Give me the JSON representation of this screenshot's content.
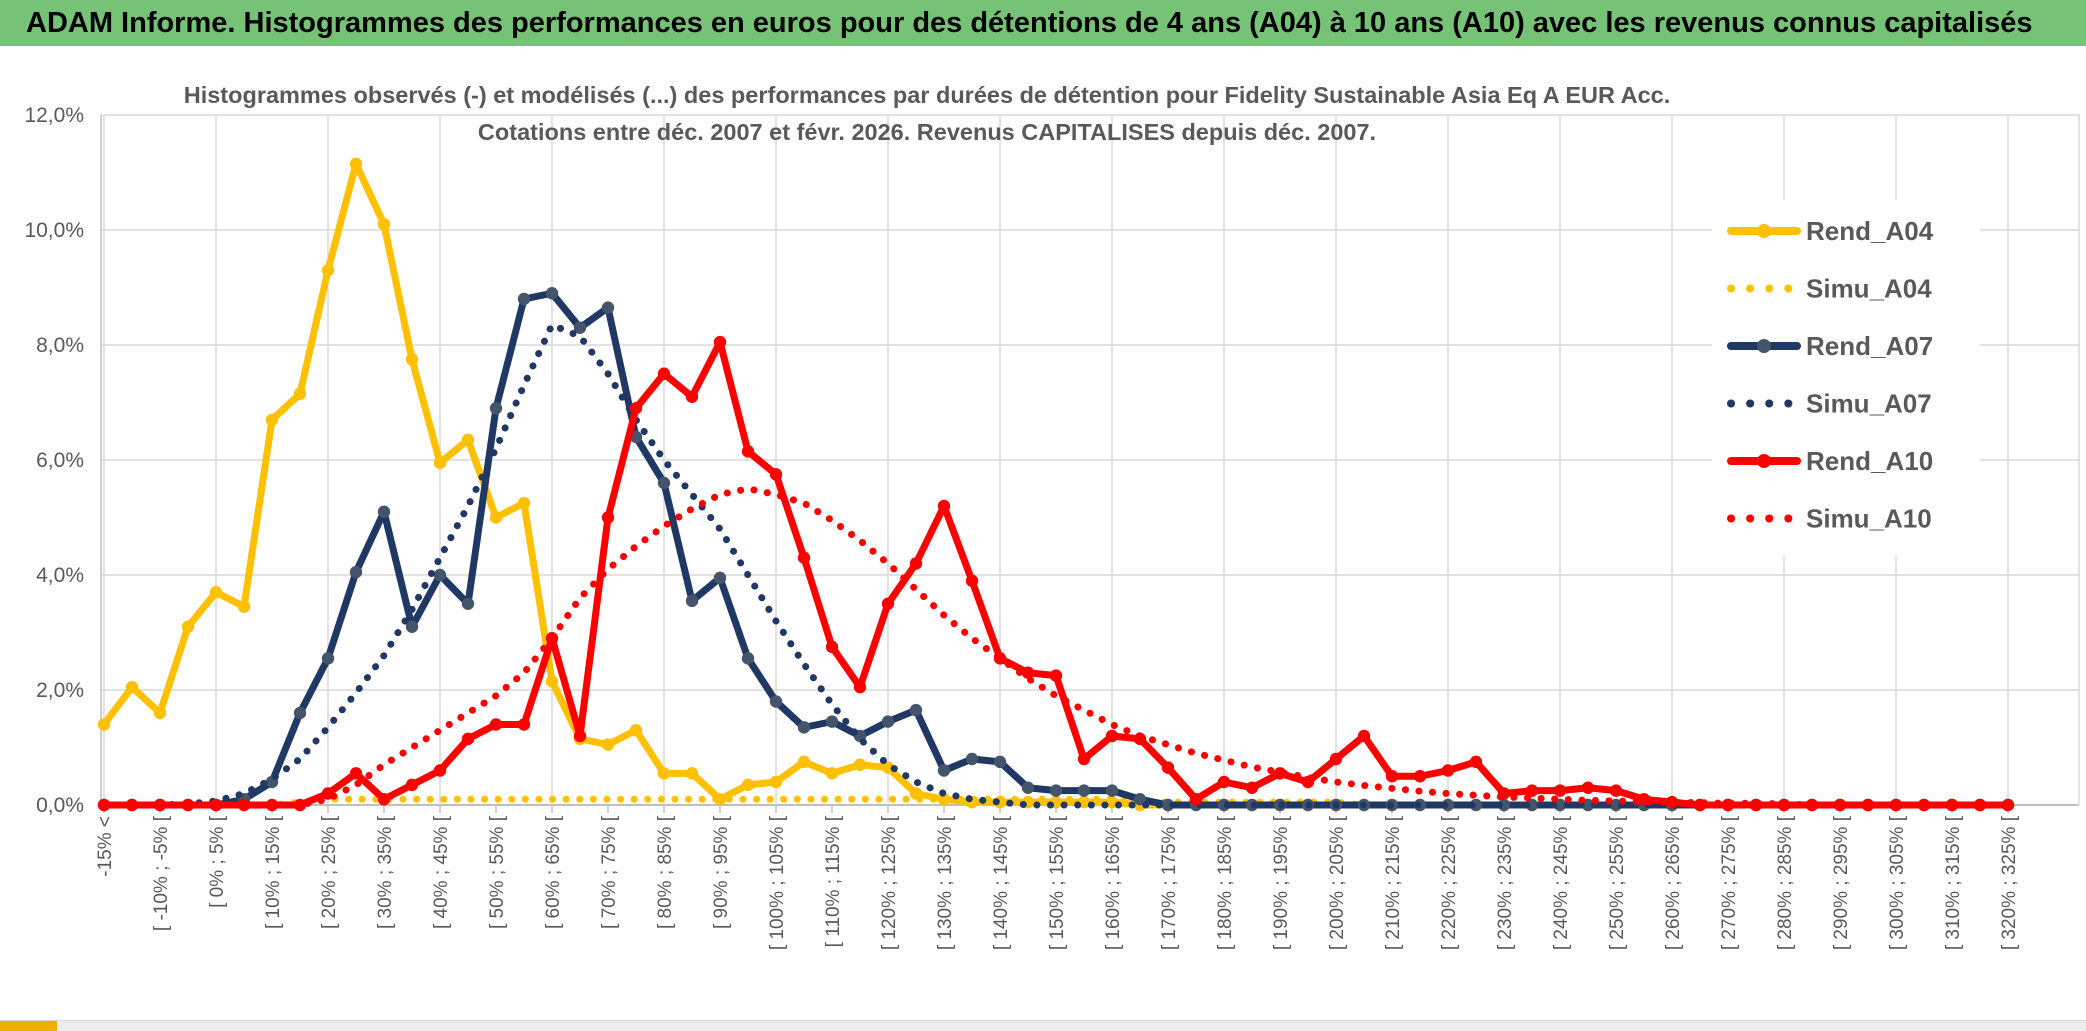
{
  "header": {
    "title": "ADAM Informe. Histogrammes des performances en euros pour des détentions de 4 ans (A04) à 10 ans (A10) avec les revenus connus capitalisés",
    "bg_color": "#76C276",
    "accent_color": "#EFAF00"
  },
  "chart_data": {
    "type": "line",
    "title_line1": "Histogrammes observés (-) et modélisés (...) des performances par durées de détention pour Fidelity Sustainable Asia Eq A EUR Acc.",
    "title_line2": "Cotations entre déc. 2007 et févr. 2026. Revenus CAPITALISES depuis déc. 2007.",
    "ylabel": "",
    "xlabel": "",
    "ylim_percent": [
      0,
      12
    ],
    "y_tick_labels": [
      "0,0%",
      "2,0%",
      "4,0%",
      "6,0%",
      "8,0%",
      "10,0%",
      "12,0%"
    ],
    "grid": "on",
    "legend_position": "right",
    "bin_count": 69,
    "x_tick_every_n_bins": 2,
    "x_tick_labels": [
      "-15% <",
      "[ -10% ; -5% [",
      "[ 0% ; 5% [",
      "[ 10% ; 15% [",
      "[ 20% ; 25% [",
      "[ 30% ; 35% [",
      "[ 40% ; 45% [",
      "[ 50% ; 55% [",
      "[ 60% ; 65% [",
      "[ 70% ; 75% [",
      "[ 80% ; 85% [",
      "[ 90% ; 95% [",
      "[ 100% ; 105% [",
      "[ 110% ; 115% [",
      "[ 120% ; 125% [",
      "[ 130% ; 135% [",
      "[ 140% ; 145% [",
      "[ 150% ; 155% [",
      "[ 160% ; 165% [",
      "[ 170% ; 175% [",
      "[ 180% ; 185% [",
      "[ 190% ; 195% [",
      "[ 200% ; 205% [",
      "[ 210% ; 215% [",
      "[ 220% ; 225% [",
      "[ 230% ; 235% [",
      "[ 240% ; 245% [",
      "[ 250% ; 255% [",
      "[ 260% ; 265% [",
      "[ 270% ; 275% [",
      "[ 280% ; 285% [",
      "[ 290% ; 295% [",
      "[ 300% ; 305% [",
      "[ 310% ; 315% [",
      "[ 320% ; 325% ["
    ],
    "series": [
      {
        "name": "Rend_A04",
        "style": "solid",
        "color": "#FFC000",
        "marker_color": "#FFC000",
        "values": [
          1.4,
          2.05,
          1.6,
          3.1,
          3.7,
          3.45,
          6.7,
          7.15,
          9.3,
          11.15,
          10.1,
          7.75,
          5.95,
          6.35,
          5.0,
          5.25,
          2.15,
          1.15,
          1.05,
          1.3,
          0.55,
          0.55,
          0.1,
          0.35,
          0.4,
          0.75,
          0.55,
          0.7,
          0.65,
          0.2,
          0.1,
          0.05,
          0.05,
          0.05,
          0.05,
          0.05,
          0.05,
          0,
          0,
          0,
          0,
          0,
          0,
          0,
          0,
          0,
          0,
          0,
          0,
          0,
          0,
          0,
          0,
          0,
          0,
          0,
          0,
          0,
          0,
          0,
          0,
          0,
          0,
          0,
          0,
          0,
          0,
          0,
          0
        ]
      },
      {
        "name": "Simu_A04",
        "style": "dotted",
        "color": "#FFC000",
        "values": [
          0,
          0,
          0,
          0,
          0,
          0,
          0,
          0.05,
          0.1,
          0.1,
          0.1,
          0.1,
          0.1,
          0.1,
          0.1,
          0.1,
          0.1,
          0.1,
          0.1,
          0.1,
          0.1,
          0.1,
          0.1,
          0.1,
          0.1,
          0.1,
          0.1,
          0.1,
          0.1,
          0.1,
          0.1,
          0.1,
          0.1,
          0.1,
          0.1,
          0.1,
          0.1,
          0.05,
          0.05,
          0.05,
          0.05,
          0.05,
          0.05,
          0.05,
          0.05,
          0,
          0,
          0,
          0,
          0,
          0,
          0,
          0,
          0,
          0,
          0,
          0,
          0,
          0,
          0,
          0,
          0,
          0,
          0,
          0,
          0,
          0,
          0,
          0
        ]
      },
      {
        "name": "Rend_A07",
        "style": "solid",
        "color": "#1F3864",
        "marker_color": "#44546A",
        "values": [
          0,
          0,
          0,
          0,
          0,
          0.1,
          0.4,
          1.6,
          2.55,
          4.05,
          5.1,
          3.1,
          4.0,
          3.5,
          6.9,
          8.8,
          8.9,
          8.3,
          8.65,
          6.4,
          5.6,
          3.55,
          3.95,
          2.55,
          1.8,
          1.35,
          1.45,
          1.2,
          1.45,
          1.65,
          0.6,
          0.8,
          0.75,
          0.3,
          0.25,
          0.25,
          0.25,
          0.1,
          0,
          0,
          0,
          0,
          0,
          0,
          0,
          0,
          0,
          0,
          0,
          0,
          0,
          0,
          0,
          0,
          0,
          0,
          0,
          0,
          0,
          0,
          0,
          0,
          0,
          0,
          0,
          0,
          0,
          0,
          0
        ]
      },
      {
        "name": "Simu_A07",
        "style": "dotted",
        "color": "#1F3864",
        "values": [
          0,
          0,
          0,
          0.02,
          0.07,
          0.2,
          0.45,
          0.8,
          1.35,
          1.95,
          2.6,
          3.4,
          4.3,
          5.2,
          6.2,
          7.3,
          8.35,
          8.15,
          7.5,
          6.7,
          6.0,
          5.4,
          4.8,
          4.0,
          3.2,
          2.45,
          1.75,
          1.15,
          0.7,
          0.4,
          0.2,
          0.1,
          0.05,
          0,
          0,
          0,
          0,
          0,
          0,
          0,
          0,
          0,
          0,
          0,
          0,
          0,
          0,
          0,
          0,
          0,
          0,
          0,
          0,
          0,
          0,
          0,
          0,
          0,
          0,
          0,
          0,
          0,
          0,
          0,
          0,
          0,
          0,
          0,
          0
        ]
      },
      {
        "name": "Rend_A10",
        "style": "solid",
        "color": "#FF0000",
        "marker_color": "#FF0000",
        "values": [
          0,
          0,
          0,
          0,
          0,
          0,
          0,
          0,
          0.2,
          0.55,
          0.1,
          0.35,
          0.6,
          1.15,
          1.4,
          1.4,
          2.9,
          1.2,
          5.0,
          6.9,
          7.5,
          7.1,
          8.05,
          6.15,
          5.75,
          4.3,
          2.75,
          2.05,
          3.5,
          4.2,
          5.2,
          3.9,
          2.55,
          2.3,
          2.25,
          0.8,
          1.2,
          1.15,
          0.65,
          0.1,
          0.4,
          0.3,
          0.55,
          0.4,
          0.8,
          1.2,
          0.5,
          0.5,
          0.6,
          0.75,
          0.2,
          0.25,
          0.25,
          0.3,
          0.25,
          0.1,
          0.05,
          0,
          0,
          0,
          0,
          0,
          0,
          0,
          0,
          0,
          0,
          0,
          0
        ]
      },
      {
        "name": "Simu_A10",
        "style": "dotted",
        "color": "#FF0000",
        "values": [
          0,
          0,
          0,
          0,
          0,
          0,
          0,
          0,
          0.1,
          0.35,
          0.7,
          1.0,
          1.3,
          1.6,
          1.9,
          2.3,
          2.9,
          3.6,
          4.1,
          4.5,
          4.85,
          5.15,
          5.4,
          5.5,
          5.4,
          5.25,
          4.95,
          4.6,
          4.2,
          3.75,
          3.3,
          2.9,
          2.55,
          2.2,
          1.9,
          1.65,
          1.4,
          1.2,
          1.05,
          0.9,
          0.78,
          0.66,
          0.57,
          0.48,
          0.4,
          0.34,
          0.29,
          0.24,
          0.2,
          0.17,
          0.14,
          0.12,
          0.1,
          0.08,
          0.07,
          0.06,
          0.05,
          0.04,
          0.03,
          0.03,
          0.02,
          0,
          0,
          0,
          0,
          0,
          0,
          0,
          0
        ]
      }
    ],
    "colors": {
      "grid": "#D9D9D9",
      "axis_line": "#BFBFBF",
      "text": "#595959",
      "legend_text": "#595959",
      "plot_bg": "#FFFFFF"
    }
  },
  "legend": {
    "items": [
      "Rend_A04",
      "Simu_A04",
      "Rend_A07",
      "Simu_A07",
      "Rend_A10",
      "Simu_A10"
    ]
  }
}
